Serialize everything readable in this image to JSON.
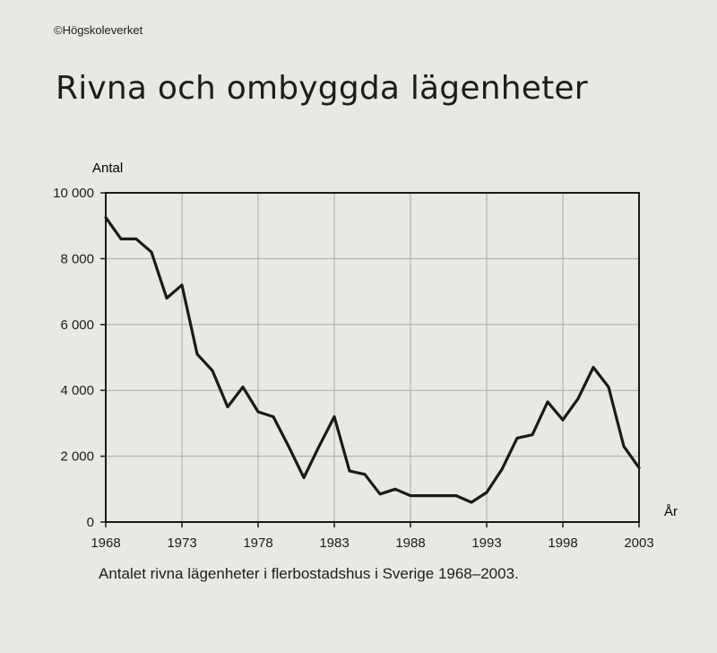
{
  "page": {
    "copyright": "©Högskoleverket",
    "title": "Rivna och ombyggda lägenheter",
    "caption": "Antalet rivna lägenheter i flerbostadshus i Sverige 1968–2003."
  },
  "chart_data": {
    "type": "line",
    "title": "Rivna och ombyggda lägenheter",
    "xlabel": "År",
    "ylabel": "Antal",
    "xlim": [
      1968,
      2003
    ],
    "ylim": [
      0,
      10000
    ],
    "grid": true,
    "x_ticks": [
      1968,
      1973,
      1978,
      1983,
      1988,
      1993,
      1998,
      2003
    ],
    "y_ticks": [
      0,
      2000,
      4000,
      6000,
      8000,
      10000
    ],
    "x_tick_labels": [
      "1968",
      "1973",
      "1978",
      "1983",
      "1988",
      "1993",
      "1998",
      "2003"
    ],
    "y_tick_labels": [
      "0",
      "2 000",
      "4 000",
      "6 000",
      "8 000",
      "10 000"
    ],
    "colors": {
      "line": "#1a1a1a",
      "grid": "#aaaaaa",
      "frame": "#1a1a1a"
    },
    "series": [
      {
        "x": [
          1968,
          1969,
          1970,
          1971,
          1972,
          1973,
          1974,
          1975,
          1976,
          1977,
          1978,
          1979,
          1980,
          1981,
          1982,
          1983,
          1984,
          1985,
          1986,
          1987,
          1988,
          1989,
          1990,
          1991,
          1992,
          1993,
          1994,
          1995,
          1996,
          1997,
          1998,
          1999,
          2000,
          2001,
          2002,
          2003
        ],
        "values": [
          9250,
          8600,
          8600,
          8200,
          6800,
          7200,
          5100,
          4600,
          3500,
          4100,
          3350,
          3200,
          2300,
          1350,
          2300,
          3200,
          1550,
          1450,
          850,
          1000,
          800,
          800,
          800,
          800,
          600,
          900,
          1600,
          2550,
          2650,
          3650,
          3100,
          3750,
          4700,
          4100,
          2300,
          1650
        ]
      }
    ]
  }
}
